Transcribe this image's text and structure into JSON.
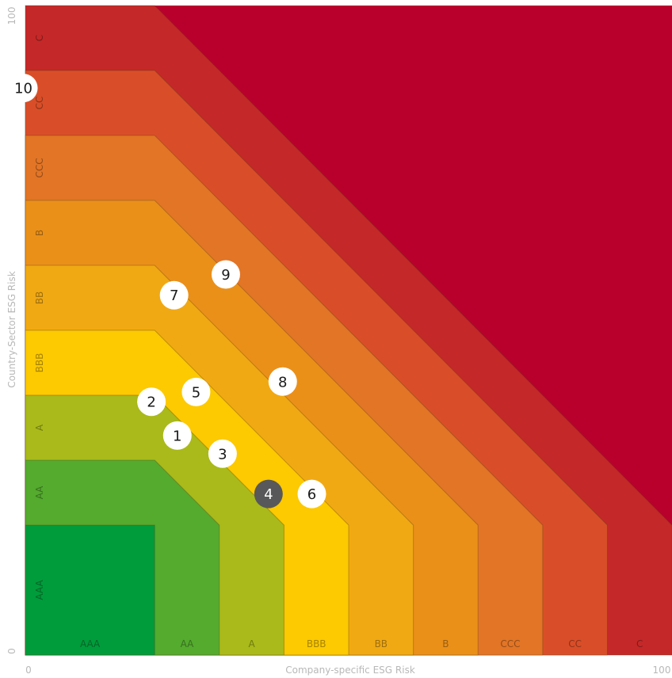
{
  "chart_data": {
    "type": "scatter",
    "title": "",
    "xlabel": "Company-specific ESG Risk",
    "ylabel": "Country-Sector ESG Risk",
    "xlim": [
      0,
      100
    ],
    "ylim": [
      0,
      100
    ],
    "x_tick_labels": [
      "0",
      "100"
    ],
    "y_tick_labels": [
      "0",
      "100"
    ],
    "rating_bands": [
      {
        "label": "AAA",
        "color": "#009c3b"
      },
      {
        "label": "AA",
        "color": "#54ab2e"
      },
      {
        "label": "A",
        "color": "#a9ba1a"
      },
      {
        "label": "BBB",
        "color": "#fdc900"
      },
      {
        "label": "BB",
        "color": "#f1a913"
      },
      {
        "label": "B",
        "color": "#ea9019"
      },
      {
        "label": "CCC",
        "color": "#e27526"
      },
      {
        "label": "CC",
        "color": "#d94e28"
      },
      {
        "label": "C",
        "color": "#c52828"
      }
    ],
    "beyond_color": "#b9002d",
    "band_step": 10,
    "bevel_after": 20,
    "points": [
      {
        "label": "1",
        "x": 23.5,
        "y": 33.8,
        "style": "light"
      },
      {
        "label": "2",
        "x": 19.5,
        "y": 39.0,
        "style": "light"
      },
      {
        "label": "3",
        "x": 30.5,
        "y": 31.0,
        "style": "light"
      },
      {
        "label": "4",
        "x": 37.6,
        "y": 24.8,
        "style": "dark"
      },
      {
        "label": "5",
        "x": 26.4,
        "y": 40.5,
        "style": "light"
      },
      {
        "label": "6",
        "x": 44.3,
        "y": 24.8,
        "style": "light"
      },
      {
        "label": "7",
        "x": 23.0,
        "y": 55.4,
        "style": "light"
      },
      {
        "label": "8",
        "x": 39.8,
        "y": 42.1,
        "style": "light"
      },
      {
        "label": "9",
        "x": 31.0,
        "y": 58.6,
        "style": "light"
      },
      {
        "label": "10",
        "x": -0.3,
        "y": 87.3,
        "style": "light"
      }
    ]
  }
}
